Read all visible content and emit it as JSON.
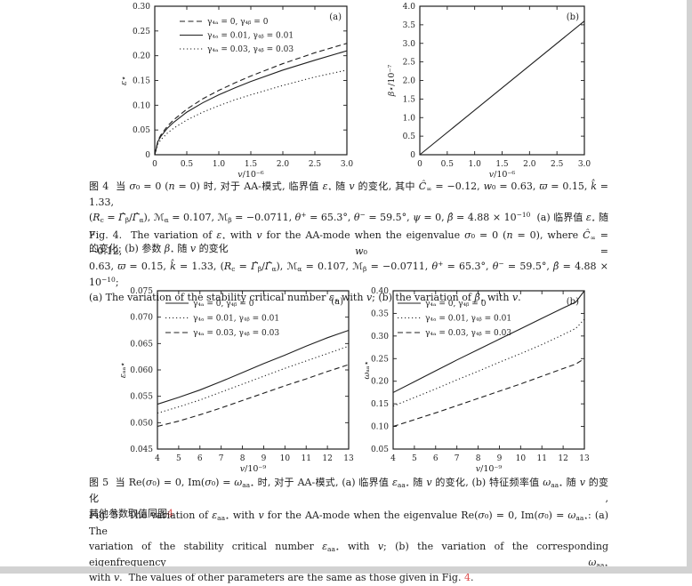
{
  "page": {
    "background": "#ffffff",
    "viewer_edge_color": "#d2d2d2",
    "text_color": "#1c1c1c",
    "line_color": "#1f1f1f",
    "reference_link_color": "#dd4b4b"
  },
  "chart_data": [
    {
      "id": "fig4a",
      "type": "line",
      "panel_label": "(a)",
      "xlabel": "v/10⁻⁶",
      "ylabel": "ε⋆",
      "xlim": [
        0,
        3.0
      ],
      "ylim": [
        0,
        0.3
      ],
      "xticks": [
        0,
        0.5,
        1.0,
        1.5,
        2.0,
        2.5,
        3.0
      ],
      "xtick_labels": [
        "0",
        "0.5",
        "1.0",
        "1.5",
        "2.0",
        "2.5",
        "3.0"
      ],
      "yticks": [
        0,
        0.05,
        0.1,
        0.15,
        0.2,
        0.25,
        0.3
      ],
      "ytick_labels": [
        "0",
        "0.05",
        "0.10",
        "0.15",
        "0.20",
        "0.25",
        "0.30"
      ],
      "grid": false,
      "legend_position": "upper-left",
      "series": [
        {
          "name": "γ₄ₐ = 0, γ₄ᵦ = 0",
          "style": "dashed",
          "x": [
            0,
            0.05,
            0.1,
            0.2,
            0.3,
            0.5,
            0.75,
            1.0,
            1.25,
            1.5,
            2.0,
            2.5,
            3.0
          ],
          "y": [
            0,
            0.029,
            0.041,
            0.058,
            0.071,
            0.092,
            0.113,
            0.13,
            0.145,
            0.159,
            0.184,
            0.206,
            0.225
          ]
        },
        {
          "name": "γ₄ₐ = 0.01, γ₄ᵦ = 0.01",
          "style": "solid",
          "x": [
            0,
            0.05,
            0.1,
            0.2,
            0.3,
            0.5,
            0.75,
            1.0,
            1.25,
            1.5,
            2.0,
            2.5,
            3.0
          ],
          "y": [
            0,
            0.027,
            0.038,
            0.054,
            0.066,
            0.086,
            0.105,
            0.121,
            0.135,
            0.148,
            0.171,
            0.191,
            0.21
          ]
        },
        {
          "name": "γ₄ₐ = 0.03, γ₄ᵦ = 0.03",
          "style": "dotted",
          "x": [
            0,
            0.05,
            0.1,
            0.2,
            0.3,
            0.5,
            0.75,
            1.0,
            1.25,
            1.5,
            2.0,
            2.5,
            3.0
          ],
          "y": [
            0,
            0.022,
            0.031,
            0.044,
            0.054,
            0.07,
            0.086,
            0.099,
            0.111,
            0.121,
            0.14,
            0.157,
            0.171
          ]
        }
      ]
    },
    {
      "id": "fig4b",
      "type": "line",
      "panel_label": "(b)",
      "xlabel": "v/10⁻⁶",
      "ylabel": "β⋆/10⁻⁷",
      "xlim": [
        0,
        3.0
      ],
      "ylim": [
        0,
        4.0
      ],
      "xticks": [
        0,
        0.5,
        1.0,
        1.5,
        2.0,
        2.5,
        3.0
      ],
      "xtick_labels": [
        "0",
        "0.5",
        "1.0",
        "1.5",
        "2.0",
        "2.5",
        "3.0"
      ],
      "yticks": [
        0,
        0.5,
        1.0,
        1.5,
        2.0,
        2.5,
        3.0,
        3.5,
        4.0
      ],
      "ytick_labels": [
        "0",
        "0.5",
        "1.0",
        "1.5",
        "2.0",
        "2.5",
        "3.0",
        "3.5",
        "4.0"
      ],
      "grid": false,
      "series": [
        {
          "name": "β⋆",
          "style": "solid",
          "x": [
            0,
            3.0
          ],
          "y": [
            0,
            3.6
          ]
        }
      ]
    },
    {
      "id": "fig5a",
      "type": "line",
      "panel_label": "(a)",
      "xlabel": "v/10⁻⁹",
      "ylabel": "εₐₐ⋆",
      "xlim": [
        4,
        13
      ],
      "ylim": [
        0.045,
        0.075
      ],
      "xticks": [
        4,
        5,
        6,
        7,
        8,
        9,
        10,
        11,
        12,
        13
      ],
      "xtick_labels": [
        "4",
        "5",
        "6",
        "7",
        "8",
        "9",
        "10",
        "11",
        "12",
        "13"
      ],
      "yticks": [
        0.045,
        0.05,
        0.055,
        0.06,
        0.065,
        0.07,
        0.075
      ],
      "ytick_labels": [
        "0.045",
        "0.050",
        "0.055",
        "0.060",
        "0.065",
        "0.070",
        "0.075"
      ],
      "grid": false,
      "legend_position": "upper-left",
      "series": [
        {
          "name": "γ₄ₐ = 0, γ₄ᵦ = 0",
          "style": "solid",
          "x": [
            4,
            5,
            6,
            7,
            8,
            9,
            10,
            11,
            12,
            13
          ],
          "y": [
            0.0535,
            0.0548,
            0.0562,
            0.0578,
            0.0595,
            0.0612,
            0.0628,
            0.0645,
            0.0661,
            0.0675
          ]
        },
        {
          "name": "γ₄ₐ = 0.01, γ₄ᵦ = 0.01",
          "style": "dotted",
          "x": [
            4,
            5,
            6,
            7,
            8,
            9,
            10,
            11,
            12,
            13
          ],
          "y": [
            0.0518,
            0.053,
            0.0543,
            0.0558,
            0.0573,
            0.0588,
            0.0603,
            0.0617,
            0.0631,
            0.0645
          ]
        },
        {
          "name": "γ₄ₐ = 0.03, γ₄ᵦ = 0.03",
          "style": "dashed",
          "x": [
            4,
            5,
            6,
            7,
            8,
            9,
            10,
            11,
            12,
            13
          ],
          "y": [
            0.0493,
            0.0503,
            0.0515,
            0.0528,
            0.0542,
            0.0556,
            0.057,
            0.0583,
            0.0597,
            0.061
          ]
        }
      ]
    },
    {
      "id": "fig5b",
      "type": "line",
      "panel_label": "(b)",
      "xlabel": "v/10⁻⁹",
      "ylabel": "ωₐₐ⋆",
      "xlim": [
        4,
        13
      ],
      "ylim": [
        0.05,
        0.4
      ],
      "xticks": [
        4,
        5,
        6,
        7,
        8,
        9,
        10,
        11,
        12,
        13
      ],
      "xtick_labels": [
        "4",
        "5",
        "6",
        "7",
        "8",
        "9",
        "10",
        "11",
        "12",
        "13"
      ],
      "yticks": [
        0.05,
        0.1,
        0.15,
        0.2,
        0.25,
        0.3,
        0.35,
        0.4
      ],
      "ytick_labels": [
        "0.05",
        "0.10",
        "0.15",
        "0.20",
        "0.25",
        "0.30",
        "0.35",
        "0.40"
      ],
      "grid": false,
      "legend_position": "upper-left",
      "series": [
        {
          "name": "γ₄ₐ = 0, γ₄ᵦ = 0",
          "style": "solid",
          "x": [
            4,
            5,
            6,
            7,
            8,
            9,
            10,
            11,
            12,
            12.6,
            13
          ],
          "y": [
            0.175,
            0.199,
            0.223,
            0.247,
            0.27,
            0.293,
            0.316,
            0.339,
            0.362,
            0.375,
            0.4
          ]
        },
        {
          "name": "γ₄ₐ = 0.01, γ₄ᵦ = 0.01",
          "style": "dotted",
          "x": [
            4,
            5,
            6,
            7,
            8,
            9,
            10,
            11,
            12,
            12.6,
            13
          ],
          "y": [
            0.145,
            0.164,
            0.183,
            0.203,
            0.222,
            0.242,
            0.261,
            0.281,
            0.303,
            0.317,
            0.337
          ]
        },
        {
          "name": "γ₄ₐ = 0.03, γ₄ᵦ = 0.03",
          "style": "dashed",
          "x": [
            4,
            5,
            6,
            7,
            8,
            9,
            10,
            11,
            12,
            12.6,
            13
          ],
          "y": [
            0.1,
            0.115,
            0.13,
            0.146,
            0.162,
            0.178,
            0.194,
            0.211,
            0.228,
            0.238,
            0.25
          ]
        }
      ]
    }
  ],
  "captions": {
    "fig4_zh": {
      "lines": [
        "图 4&nbsp;&nbsp;当 <i>σ</i>₀ = 0 (<i>n</i> = 0) 时, 对于 AA-模式, 临界值 <i>ε</i><sub>⋆</sub> 随 <i>v</i> 的变化, 其中 <i>Ĉ</i><sub>∞</sub> = −0.12, <i>w</i>₀ = 0.63, <i>ϖ</i> = 0.15, <i>k̂</i> = 1.33,",
        "(<i>R</i><sub>c</sub> = <i>Γ̂</i><sub>β</sub>/<i>Γ̂</i><sub>α</sub>), ℳ<sub>α</sub> = 0.107, ℳ<sub>β</sub> = −0.0711, <i>θ</i><sup>+</sup> = 65.3°, <i>θ</i><sup>−</sup> = 59.5°, <i>ψ</i> = 0, <i>β̂</i> = 4.88 × 10<sup>−10</sup>&nbsp;&nbsp;(a) 临界值 <i>ε</i><sub>⋆</sub> 随 <i>v</i>",
        "的变化; (b) 参数 <i>β</i><sub>⋆</sub> 随 <i>v</i> 的变化"
      ]
    },
    "fig4_en": {
      "lines": [
        "Fig. 4.&nbsp; The variation of <i>ε</i><sub>⋆</sub> with <i>v</i> for the AA-mode when the eigenvalue <i>σ</i>₀ = 0 (<i>n</i> = 0), where <i>Ĉ</i><sub>∞</sub> = −0.12, <i>w</i>₀ =",
        "0.63, <i>ϖ</i> = 0.15, <i>k̂</i> = 1.33, (<i>R</i><sub>c</sub> = <i>Γ̂</i><sub>β</sub>/<i>Γ̂</i><sub>α</sub>), ℳ<sub>α</sub> = 0.107, ℳ<sub>β</sub> = −0.0711, <i>θ</i><sup>+</sup> = 65.3°, <i>θ</i><sup>−</sup> = 59.5°, <i>β̂</i> = 4.88 × 10<sup>−10</sup>;",
        "(a) The variation of the stability critical number <i>ε</i><sub>⋆</sub> with <i>v</i>; (b) the variation of <i>β</i><sub>⋆</sub> with <i>v</i>."
      ]
    },
    "fig5_zh": {
      "lines": [
        "图 5&nbsp;&nbsp;当 Re(<i>σ</i>₀) = 0, Im(<i>σ</i>₀) = <i>ω</i><sub>aa⋆</sub> 时, 对于 AA-模式, (a) 临界值 <i>ε</i><sub>aa⋆</sub> 随 <i>v</i> 的变化, (b) 特征频率值 <i>ω</i><sub>aa⋆</sub> 随 <i>v</i> 的变化,",
        "其他参数取值同图<span class=\"ref\" data-name=\"fig4-reference-link\" data-interactable=\"true\">4</span>"
      ]
    },
    "fig5_en": {
      "lines": [
        "Fig. 5.&nbsp; The variation of <i>ε</i><sub>aa⋆</sub> with <i>v</i> for the AA-mode when the eigenvalue Re(<i>σ</i>₀) = 0, Im(<i>σ</i>₀) = <i>ω</i><sub>aa⋆</sub>: (a) The",
        "variation of the stability critical number <i>ε</i><sub>aa⋆</sub> with <i>v</i>; (b) the variation of the corresponding eigenfrequency <i>ω</i><sub>aa⋆</sub>",
        "with <i>v</i>.&nbsp; The values of other parameters are the same as those given in Fig. <span class=\"ref\" data-name=\"fig4-reference-link\" data-interactable=\"true\">4</span>."
      ]
    }
  }
}
